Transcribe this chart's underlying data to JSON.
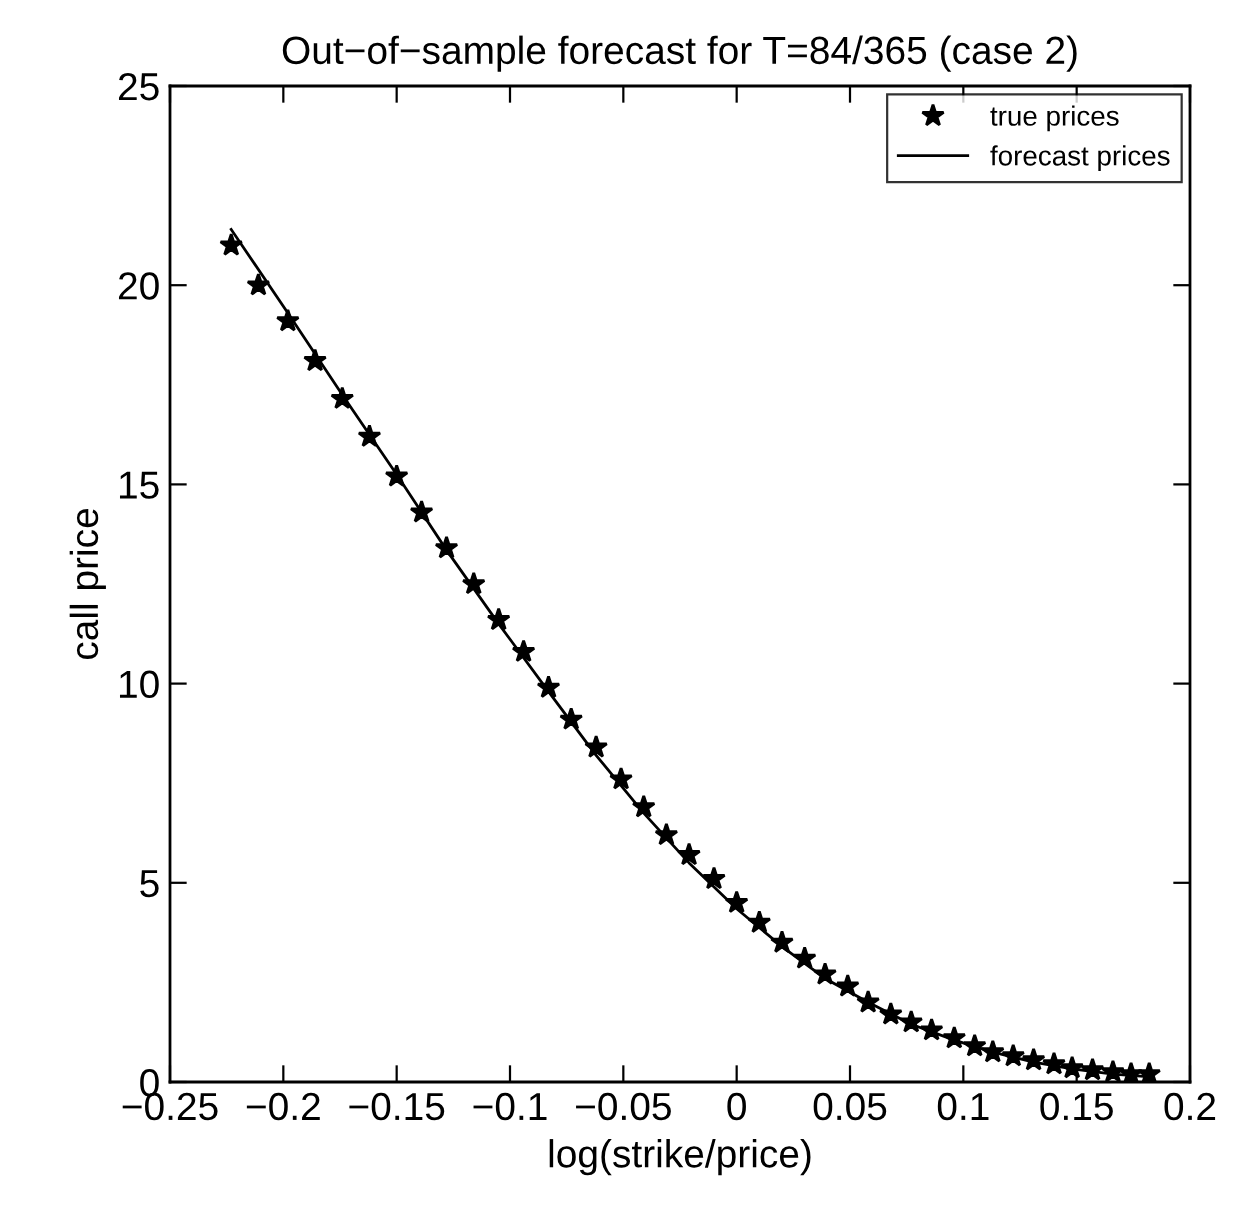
{
  "chart_data": {
    "type": "scatter",
    "title": "Out−of−sample forecast for T=84/365 (case 2)",
    "xlabel": "log(strike/price)",
    "ylabel": "call price",
    "xlim": [
      -0.25,
      0.2
    ],
    "ylim": [
      0,
      25
    ],
    "xticks": [
      {
        "value": -0.25,
        "label": "−0.25"
      },
      {
        "value": -0.2,
        "label": "−0.2"
      },
      {
        "value": -0.15,
        "label": "−0.15"
      },
      {
        "value": -0.1,
        "label": "−0.1"
      },
      {
        "value": -0.05,
        "label": "−0.05"
      },
      0,
      0.05,
      0.1,
      0.15,
      0.2
    ],
    "yticks": [
      0,
      5,
      10,
      15,
      20,
      25
    ],
    "grid": false,
    "legend": "top right",
    "series": [
      {
        "name": "true prices",
        "marker": "star",
        "color": "#000000",
        "x": [
          -0.223,
          -0.211,
          -0.198,
          -0.186,
          -0.174,
          -0.162,
          -0.15,
          -0.139,
          -0.128,
          -0.116,
          -0.105,
          -0.094,
          -0.083,
          -0.073,
          -0.062,
          -0.051,
          -0.041,
          -0.031,
          -0.021,
          -0.01,
          0.0,
          0.01,
          0.02,
          0.03,
          0.039,
          0.049,
          0.058,
          0.068,
          0.077,
          0.086,
          0.096,
          0.105,
          0.113,
          0.122,
          0.131,
          0.14,
          0.148,
          0.157,
          0.166,
          0.174,
          0.182
        ],
        "values": [
          21.0,
          20.0,
          19.1,
          18.1,
          17.15,
          16.2,
          15.2,
          14.3,
          13.4,
          12.5,
          11.6,
          10.8,
          9.9,
          9.1,
          8.4,
          7.6,
          6.9,
          6.2,
          5.7,
          5.1,
          4.5,
          4.0,
          3.5,
          3.1,
          2.7,
          2.4,
          2.0,
          1.7,
          1.5,
          1.3,
          1.1,
          0.9,
          0.75,
          0.65,
          0.55,
          0.45,
          0.35,
          0.3,
          0.25,
          0.2,
          0.2
        ]
      },
      {
        "name": "forecast prices",
        "type": "line",
        "marker": "none",
        "line_style": "solid",
        "color": "#000000",
        "x": [
          -0.223,
          -0.198,
          -0.174,
          -0.15,
          -0.128,
          -0.105,
          -0.083,
          -0.062,
          -0.041,
          -0.021,
          0.0,
          0.02,
          0.039,
          0.058,
          0.077,
          0.096,
          0.113,
          0.131,
          0.148,
          0.166,
          0.182
        ],
        "values": [
          21.4,
          19.3,
          17.25,
          15.25,
          13.35,
          11.5,
          9.8,
          8.2,
          6.75,
          5.5,
          4.35,
          3.4,
          2.6,
          2.0,
          1.45,
          1.05,
          0.75,
          0.5,
          0.33,
          0.2,
          0.13
        ]
      }
    ]
  }
}
